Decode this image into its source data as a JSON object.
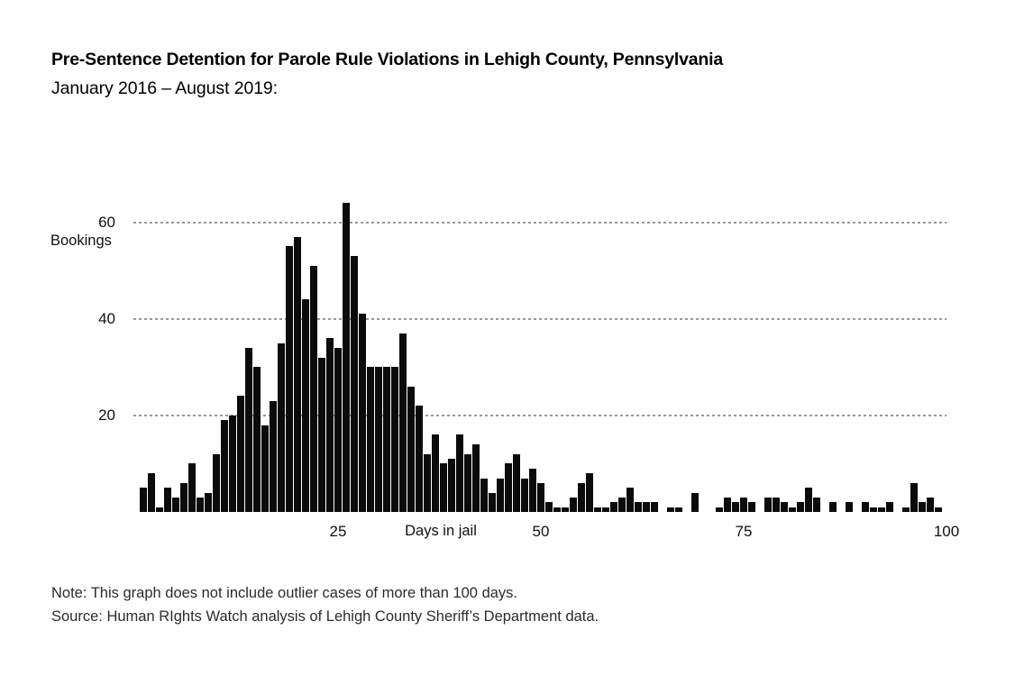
{
  "page": {
    "title": "Pre-Sentence Detention for Parole Rule Violations in Lehigh County, Pennsylvania",
    "subtitle": "January 2016 – August 2019:",
    "note": "Note: This graph does not include outlier cases of more than 100 days.",
    "source": "Source: Human RIghts Watch analysis of Lehigh County Sheriff’s Department data."
  },
  "chart_data": {
    "type": "bar",
    "title": "Pre-Sentence Detention for Parole Rule Violations in Lehigh County, Pennsylvania",
    "subtitle": "January 2016 – August 2019:",
    "xlabel": "Days in jail",
    "ylabel": "Bookings",
    "x_start": 1,
    "x_step": 1,
    "x_ticks": [
      25,
      50,
      75,
      100
    ],
    "y_ticks": [
      20,
      40,
      60
    ],
    "xlim": [
      1,
      100
    ],
    "ylim": [
      0,
      66
    ],
    "grid": "horizontal-dotted",
    "legend": "none",
    "bar_color": "#0b0b0b",
    "gridline_color": "#999999",
    "values": [
      5,
      8,
      1,
      5,
      3,
      6,
      10,
      3,
      4,
      12,
      19,
      20,
      24,
      34,
      30,
      18,
      23,
      35,
      55,
      57,
      44,
      51,
      32,
      36,
      34,
      64,
      53,
      41,
      30,
      30,
      30,
      30,
      37,
      26,
      22,
      12,
      16,
      10,
      11,
      16,
      12,
      14,
      7,
      4,
      7,
      10,
      12,
      7,
      9,
      6,
      2,
      1,
      1,
      3,
      6,
      8,
      1,
      1,
      2,
      3,
      5,
      2,
      2,
      2,
      0,
      1,
      1,
      0,
      4,
      0,
      0,
      1,
      3,
      2,
      3,
      2,
      0,
      3,
      3,
      2,
      1,
      2,
      5,
      3,
      0,
      2,
      0,
      2,
      0,
      2,
      1,
      1,
      2,
      0,
      1,
      6,
      2,
      3,
      1,
      0
    ]
  }
}
